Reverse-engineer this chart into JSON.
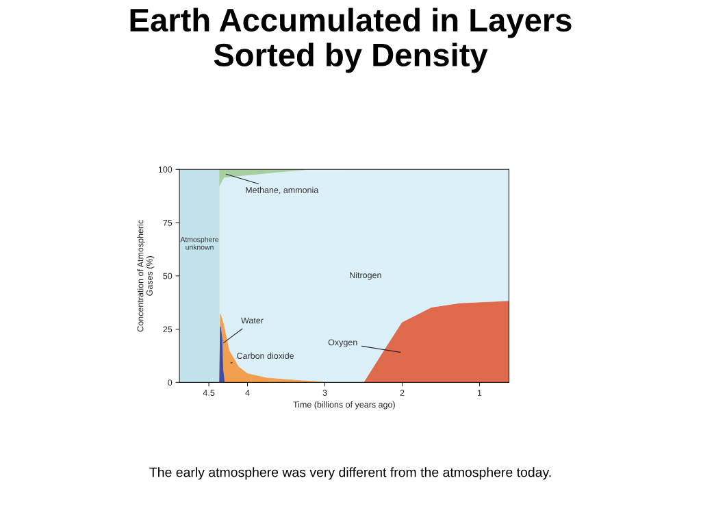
{
  "chart_data": {
    "type": "area",
    "title": "Earth Accumulated in Layers\nSorted by Density",
    "xlabel": "Time (billions of years ago)",
    "ylabel": "Concentration of Atmospheric\nGases (%)",
    "xlim": [
      4.88,
      0.62
    ],
    "xticks": [
      4.5,
      4,
      3,
      2,
      1
    ],
    "ylim": [
      0,
      100
    ],
    "yticks": [
      0,
      25,
      50,
      75,
      100
    ],
    "bands": [
      {
        "axis": "x",
        "from": 4.88,
        "to": 4.36,
        "label": "Atmosphere\nunknown",
        "color": "#c3e3ec"
      }
    ],
    "series": [
      {
        "name": "Methane, ammonia",
        "color": "#a8cfa0",
        "x": [
          4.36,
          4.3,
          4.0,
          3.6,
          3.26
        ],
        "values": [
          100,
          100,
          100,
          100,
          100
        ]
      },
      {
        "name": "Nitrogen",
        "color": "#dcf0f9",
        "x": [
          4.36,
          4.3,
          4.0,
          3.6,
          3.26,
          0.62
        ],
        "values": [
          92,
          96,
          97,
          98.5,
          99.5,
          100
        ]
      },
      {
        "name": "Carbon dioxide",
        "color": "#f0a050",
        "x": [
          4.36,
          4.35,
          4.31,
          4.24,
          4.12,
          4.0,
          3.75,
          3.39,
          3.0
        ],
        "values": [
          0,
          32,
          27,
          15,
          7.4,
          4,
          2,
          1,
          0
        ]
      },
      {
        "name": "Water",
        "color": "#3a4db0",
        "x": [
          4.36,
          4.35,
          4.33,
          4.32,
          4.3
        ],
        "values": [
          0,
          26,
          20,
          6,
          0
        ]
      },
      {
        "name": "Oxygen",
        "color": "#e06a4c",
        "x": [
          2.49,
          2.23,
          2.0,
          1.62,
          1.25,
          0.62
        ],
        "values": [
          0,
          15,
          28,
          35,
          37,
          38
        ]
      }
    ],
    "annotations": [
      "The early atmosphere was very different from the atmosphere today."
    ]
  }
}
